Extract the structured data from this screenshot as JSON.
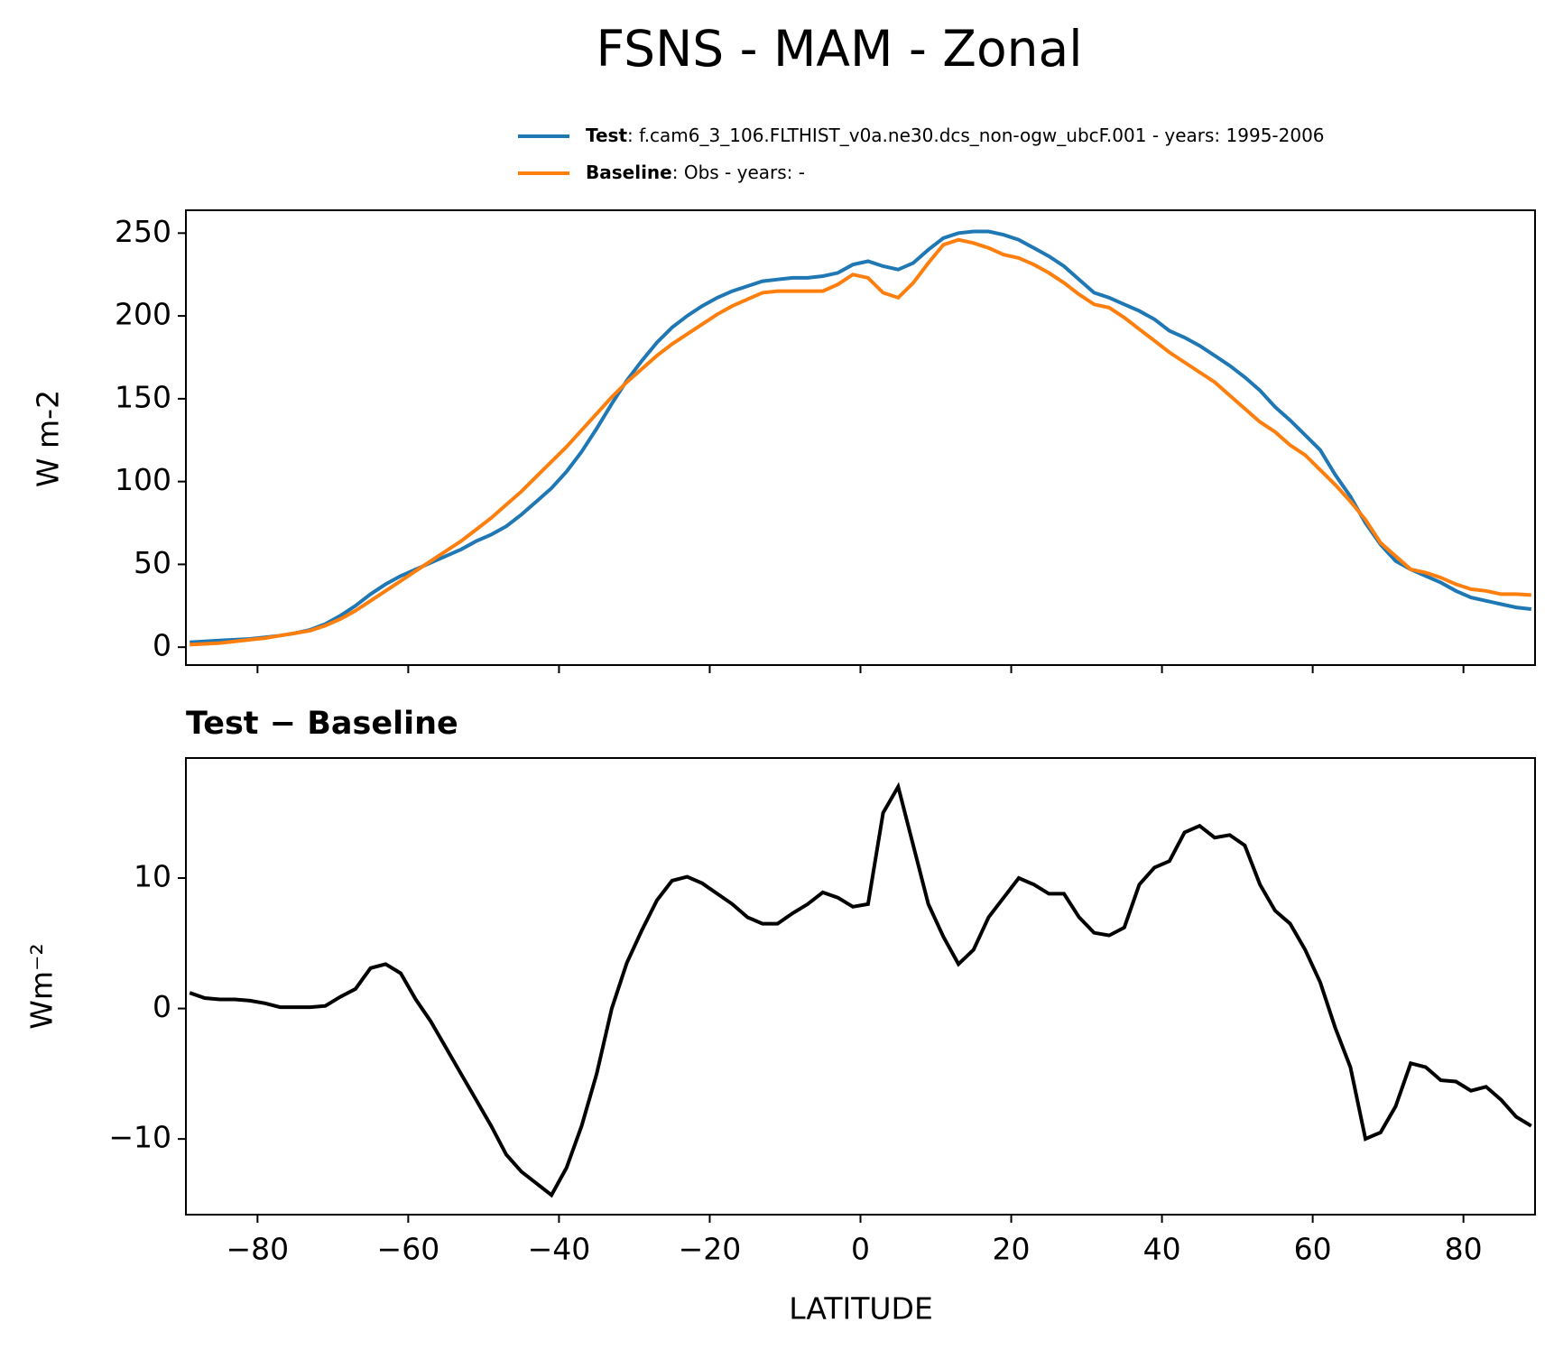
{
  "chart_data": [
    {
      "type": "line",
      "title": "FSNS - MAM - Zonal",
      "ylabel": "W m-2",
      "x": [
        -89,
        -87,
        -85,
        -83,
        -81,
        -79,
        -77,
        -75,
        -73,
        -71,
        -69,
        -67,
        -65,
        -63,
        -61,
        -59,
        -57,
        -55,
        -53,
        -51,
        -49,
        -47,
        -45,
        -43,
        -41,
        -39,
        -37,
        -35,
        -33,
        -31,
        -29,
        -27,
        -25,
        -23,
        -21,
        -19,
        -17,
        -15,
        -13,
        -11,
        -9,
        -7,
        -5,
        -3,
        -1,
        1,
        3,
        5,
        7,
        9,
        11,
        13,
        15,
        17,
        19,
        21,
        23,
        25,
        27,
        29,
        31,
        33,
        35,
        37,
        39,
        41,
        43,
        45,
        47,
        49,
        51,
        53,
        55,
        57,
        59,
        61,
        63,
        65,
        67,
        69,
        71,
        73,
        75,
        77,
        79,
        81,
        83,
        85,
        87,
        89
      ],
      "series": [
        {
          "name": "Test",
          "description": ": f.cam6_3_106.FLTHIST_v0a.ne30.dcs_non-ogw_ubcF.001 - years: 1995-2006",
          "color": "#1f77b4",
          "values": [
            3,
            3.5,
            4,
            4.5,
            5,
            6,
            7,
            8.5,
            10.5,
            14,
            19,
            25,
            32,
            38,
            43,
            47,
            51,
            55,
            59,
            64,
            68,
            73,
            80,
            88,
            96,
            106,
            118,
            132,
            147,
            161,
            173,
            184,
            193,
            200,
            206,
            211,
            215,
            218,
            221,
            222,
            223,
            223,
            224,
            226,
            231,
            233,
            230,
            228,
            232,
            240,
            247,
            250,
            251,
            251,
            249,
            246,
            241,
            236,
            230,
            222,
            214,
            211,
            207,
            203,
            198,
            191,
            187,
            182,
            176,
            170,
            163,
            155,
            145,
            137,
            128,
            119,
            104,
            91,
            75,
            62,
            52,
            47,
            43,
            39,
            34,
            30,
            28,
            26,
            24,
            23
          ]
        },
        {
          "name": "Baseline",
          "description": ": Obs - years: -",
          "color": "#ff7f0e",
          "values": [
            1.5,
            2,
            2.5,
            3.5,
            4.5,
            5.5,
            7,
            8.5,
            10,
            13,
            17,
            22,
            28,
            34,
            40,
            46,
            52,
            58,
            64,
            71,
            78,
            86,
            94,
            103,
            112,
            121,
            131,
            141,
            151,
            160,
            168,
            176,
            183,
            189,
            195,
            201,
            206,
            210,
            214,
            215,
            215,
            215,
            215,
            219,
            225,
            223,
            214,
            211,
            220,
            232,
            243,
            246,
            244,
            241,
            237,
            235,
            231,
            226,
            220,
            213,
            207,
            205,
            199,
            192,
            185,
            178,
            172,
            166,
            160,
            152,
            144,
            136,
            130,
            122,
            116,
            107,
            98,
            88,
            77,
            63,
            55,
            47,
            45,
            42,
            38,
            35,
            34,
            32,
            32,
            31.5
          ]
        }
      ],
      "xlim": [
        -89.5,
        89.5
      ],
      "xticks": [
        -80,
        -60,
        -40,
        -20,
        0,
        20,
        40,
        60,
        80
      ],
      "x_tick_labels": false,
      "ylim": [
        -10.8,
        263.8
      ],
      "yticks": [
        0,
        50,
        100,
        150,
        200,
        250
      ]
    },
    {
      "type": "line",
      "title": "Test − Baseline",
      "ylabel": "Wm⁻²",
      "xlabel": "LATITUDE",
      "x": [
        -89,
        -87,
        -85,
        -83,
        -81,
        -79,
        -77,
        -75,
        -73,
        -71,
        -69,
        -67,
        -65,
        -63,
        -61,
        -59,
        -57,
        -55,
        -53,
        -51,
        -49,
        -47,
        -45,
        -43,
        -41,
        -39,
        -37,
        -35,
        -33,
        -31,
        -29,
        -27,
        -25,
        -23,
        -21,
        -19,
        -17,
        -15,
        -13,
        -11,
        -9,
        -7,
        -5,
        -3,
        -1,
        1,
        3,
        5,
        7,
        9,
        11,
        13,
        15,
        17,
        19,
        21,
        23,
        25,
        27,
        29,
        31,
        33,
        35,
        37,
        39,
        41,
        43,
        45,
        47,
        49,
        51,
        53,
        55,
        57,
        59,
        61,
        63,
        65,
        67,
        69,
        71,
        73,
        75,
        77,
        79,
        81,
        83,
        85,
        87,
        89
      ],
      "color": "#000000",
      "values": [
        1.2,
        0.8,
        0.7,
        0.7,
        0.6,
        0.4,
        0.1,
        0.1,
        0.1,
        0.2,
        0.9,
        1.5,
        3.1,
        3.4,
        2.7,
        0.7,
        -1.0,
        -3.0,
        -5.0,
        -7.0,
        -9.0,
        -11.2,
        -12.5,
        -13.4,
        -14.3,
        -12.2,
        -9.0,
        -5.0,
        0,
        3.5,
        6.0,
        8.3,
        9.8,
        10.1,
        9.6,
        8.8,
        8.0,
        7.0,
        6.5,
        6.5,
        7.3,
        8.0,
        8.9,
        8.5,
        7.8,
        8.0,
        15,
        17,
        12.5,
        8.0,
        5.5,
        3.4,
        4.5,
        7.0,
        8.5,
        10.0,
        9.5,
        8.8,
        8.8,
        7.0,
        5.8,
        5.6,
        6.2,
        9.5,
        10.8,
        11.3,
        13.5,
        14.0,
        13.1,
        13.3,
        12.5,
        9.5,
        7.5,
        6.5,
        4.5,
        2.0,
        -1.5,
        -4.5,
        -10.0,
        -9.5,
        -7.5,
        -4.2,
        -4.5,
        -5.5,
        -5.6,
        -6.3,
        -6.0,
        -7.0,
        -8.3,
        -9.0
      ],
      "xlim": [
        -89.5,
        89.5
      ],
      "xticks": [
        {
          "value": -80,
          "label": "−80"
        },
        {
          "value": -60,
          "label": "−60"
        },
        {
          "value": -40,
          "label": "−40"
        },
        {
          "value": -20,
          "label": "−20"
        },
        0,
        20,
        40,
        60,
        80
      ],
      "ylim": [
        -15.8,
        19.2
      ],
      "yticks": [
        {
          "value": -10,
          "label": "−10"
        },
        0,
        10
      ]
    }
  ]
}
